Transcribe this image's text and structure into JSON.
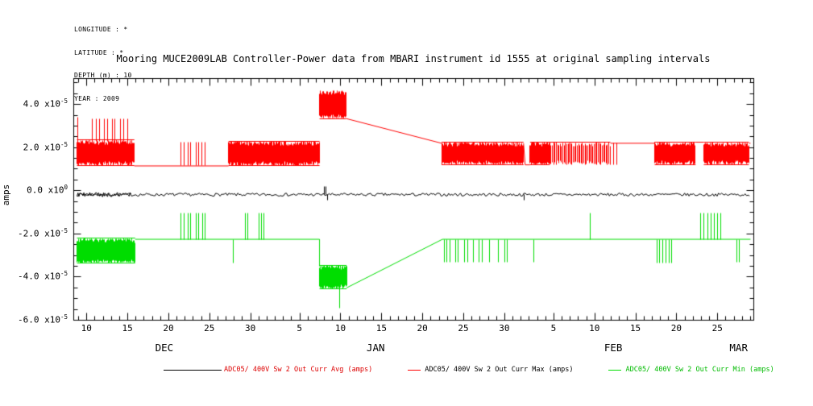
{
  "meta": {
    "longitude": "LONGITUDE : *",
    "latitude": "LATITUDE : *",
    "depth": "DEPTH (m) : 10",
    "year": "YEAR : 2009"
  },
  "chart_data": {
    "type": "line",
    "title": "Mooring MUCE2009LAB Controller-Power data from MBARI instrument id 1555 at original sampling intervals",
    "ylabel": "amps",
    "x_axis": {
      "unit": "day of season, Dec 1 = 1",
      "min": 8.4,
      "max": 91.4,
      "minor_step": 1,
      "major_ticks": [
        {
          "day": 10,
          "label": "10"
        },
        {
          "day": 15,
          "label": "15"
        },
        {
          "day": 20,
          "label": "20"
        },
        {
          "day": 25,
          "label": "25"
        },
        {
          "day": 30,
          "label": "30"
        },
        {
          "day": 36,
          "label": "5"
        },
        {
          "day": 41,
          "label": "10"
        },
        {
          "day": 46,
          "label": "15"
        },
        {
          "day": 51,
          "label": "20"
        },
        {
          "day": 56,
          "label": "25"
        },
        {
          "day": 61,
          "label": "30"
        },
        {
          "day": 67,
          "label": "5"
        },
        {
          "day": 72,
          "label": "10"
        },
        {
          "day": 77,
          "label": "15"
        },
        {
          "day": 82,
          "label": "20"
        },
        {
          "day": 87,
          "label": "25"
        }
      ],
      "months": [
        {
          "label": "DEC",
          "day": 19.5
        },
        {
          "label": "JAN",
          "day": 45.3
        },
        {
          "label": "FEB",
          "day": 74.3
        },
        {
          "label": "MAR",
          "day": 89.6
        }
      ]
    },
    "y_axis": {
      "min": -6e-05,
      "max": 5.2e-05,
      "minor_step": 5e-06,
      "ticks": [
        {
          "v": 4e-05,
          "mant": "4.0",
          "exp": "-5"
        },
        {
          "v": 2e-05,
          "mant": "2.0",
          "exp": "-5"
        },
        {
          "v": 0,
          "mant": "0.0",
          "exp": "0"
        },
        {
          "v": -2e-05,
          "mant": "-2.0",
          "exp": "-5"
        },
        {
          "v": -4e-05,
          "mant": "-4.0",
          "exp": "-5"
        },
        {
          "v": -6e-05,
          "mant": "-6.0",
          "exp": "-5"
        }
      ]
    },
    "series": [
      {
        "name": "Max",
        "color": "#ff0000",
        "elements": [
          {
            "t": "spikes",
            "base": 1.2e-05,
            "top": 3.4e-05,
            "xs": [
              8.9
            ]
          },
          {
            "t": "noise",
            "x0": 8.8,
            "x1": 15.8,
            "lo": 1.15e-05,
            "hi": 2.35e-05,
            "step": 0.07,
            "seed": 11,
            "edge": "both"
          },
          {
            "t": "spikes",
            "base": 2.3e-05,
            "top": 3.35e-05,
            "xs": [
              10.7,
              11.2,
              11.5,
              12.1,
              12.5,
              13.1,
              13.4,
              14.1,
              14.5,
              15.0
            ]
          },
          {
            "t": "line",
            "pts": [
              [
                15.8,
                1.15e-05
              ],
              [
                27.3,
                1.15e-05
              ]
            ]
          },
          {
            "t": "spikes",
            "base": 1.15e-05,
            "top": 2.25e-05,
            "xs": [
              21.5,
              21.9,
              22.4,
              22.7,
              23.3,
              23.6,
              24.0,
              24.4
            ]
          },
          {
            "t": "noise",
            "x0": 27.3,
            "x1": 38.4,
            "lo": 1.15e-05,
            "hi": 2.3e-05,
            "step": 0.07,
            "seed": 22,
            "edge": "both"
          },
          {
            "t": "noise",
            "x0": 38.4,
            "x1": 41.6,
            "lo": 3.35e-05,
            "hi": 4.65e-05,
            "step": 0.05,
            "seed": 33,
            "edge": "lo"
          },
          {
            "t": "line",
            "pts": [
              [
                41.6,
                3.35e-05
              ],
              [
                53.3,
                2.2e-05
              ]
            ]
          },
          {
            "t": "noise",
            "x0": 53.3,
            "x1": 63.3,
            "lo": 1.2e-05,
            "hi": 2.25e-05,
            "step": 0.06,
            "seed": 44,
            "edge": "both"
          },
          {
            "t": "line",
            "pts": [
              [
                63.3,
                2.2e-05
              ],
              [
                63.5,
                1.2e-05
              ],
              [
                64.1,
                1.2e-05
              ]
            ]
          },
          {
            "t": "noise",
            "x0": 64.1,
            "x1": 66.5,
            "lo": 1.2e-05,
            "hi": 2.25e-05,
            "step": 0.06,
            "seed": 55,
            "edge": "both"
          },
          {
            "t": "noise",
            "x0": 66.5,
            "x1": 73.9,
            "lo": 1.2e-05,
            "hi": 2.25e-05,
            "step": 0.16,
            "seed": 66,
            "edge": "hi"
          },
          {
            "t": "line",
            "pts": [
              [
                73.9,
                2.2e-05
              ],
              [
                79.3,
                2.2e-05
              ]
            ]
          },
          {
            "t": "spikes",
            "base": 2.2e-05,
            "top": 1.2e-05,
            "xs": [
              74.3,
              74.7
            ]
          },
          {
            "t": "noise",
            "x0": 79.3,
            "x1": 84.3,
            "lo": 1.2e-05,
            "hi": 2.25e-05,
            "step": 0.09,
            "seed": 77,
            "edge": "both"
          },
          {
            "t": "line",
            "pts": [
              [
                84.3,
                2.25e-05
              ],
              [
                85.3,
                2.25e-05
              ]
            ]
          },
          {
            "t": "noise",
            "x0": 85.3,
            "x1": 90.8,
            "lo": 1.2e-05,
            "hi": 2.25e-05,
            "step": 0.09,
            "seed": 88,
            "edge": "both"
          },
          {
            "t": "line",
            "pts": [
              [
                90.8,
                2.2e-05
              ],
              [
                91.0,
                2.2e-05
              ]
            ]
          }
        ]
      },
      {
        "name": "Min",
        "color": "#00dd00",
        "elements": [
          {
            "t": "noise",
            "x0": 8.8,
            "x1": 15.9,
            "lo": -3.35e-05,
            "hi": -2.2e-05,
            "step": 0.05,
            "seed": 101,
            "edge": "both"
          },
          {
            "t": "line",
            "pts": [
              [
                15.9,
                -2.25e-05
              ],
              [
                38.4,
                -2.25e-05
              ]
            ]
          },
          {
            "t": "spikes",
            "base": -2.25e-05,
            "top": -1.05e-05,
            "xs": [
              21.5,
              21.9,
              22.4,
              22.7,
              23.3,
              23.6,
              24.1,
              24.4
            ]
          },
          {
            "t": "spikes",
            "base": -2.25e-05,
            "top": -3.35e-05,
            "xs": [
              27.9
            ]
          },
          {
            "t": "spikes",
            "base": -2.25e-05,
            "top": -1.05e-05,
            "xs": [
              29.3,
              29.6,
              31.0,
              31.3,
              31.6
            ]
          },
          {
            "t": "line",
            "pts": [
              [
                38.4,
                -2.25e-05
              ],
              [
                38.4,
                -3.5e-05
              ]
            ]
          },
          {
            "t": "noise",
            "x0": 38.4,
            "x1": 41.7,
            "lo": -4.55e-05,
            "hi": -3.45e-05,
            "step": 0.05,
            "seed": 112,
            "edge": "both"
          },
          {
            "t": "spikes",
            "base": -4.5e-05,
            "top": -5.45e-05,
            "xs": [
              40.9
            ]
          },
          {
            "t": "line",
            "pts": [
              [
                41.7,
                -4.5e-05
              ],
              [
                53.4,
                -2.25e-05
              ]
            ]
          },
          {
            "t": "line",
            "pts": [
              [
                53.4,
                -2.25e-05
              ],
              [
                91.0,
                -2.25e-05
              ]
            ]
          },
          {
            "t": "spikes",
            "base": -2.25e-05,
            "top": -3.3e-05,
            "xs": [
              53.6,
              53.9,
              54.3,
              55.0,
              55.3,
              56.1,
              56.5,
              57.2,
              57.9,
              58.3,
              59.1,
              60.2,
              61.0,
              61.3,
              64.6
            ]
          },
          {
            "t": "spikes",
            "base": -2.25e-05,
            "top": -1.05e-05,
            "xs": [
              71.4
            ]
          },
          {
            "t": "spikes",
            "base": -2.25e-05,
            "top": -3.35e-05,
            "xs": [
              79.6,
              79.9,
              80.3,
              80.7,
              81.1,
              81.4
            ]
          },
          {
            "t": "spikes",
            "base": -2.25e-05,
            "top": -1.05e-05,
            "xs": [
              84.9,
              85.3,
              85.8,
              86.2,
              86.6,
              87.0,
              87.4
            ]
          },
          {
            "t": "spikes",
            "base": -2.25e-05,
            "top": -3.3e-05,
            "xs": [
              89.3,
              89.6
            ]
          }
        ]
      },
      {
        "name": "Avg",
        "color": "#000000",
        "elements": [
          {
            "t": "jitter",
            "x0": 8.8,
            "x1": 91.0,
            "base": -1.8e-06,
            "amp": 1.4e-06,
            "step": 0.18,
            "seed": 7
          },
          {
            "t": "jitter",
            "x0": 8.8,
            "x1": 15.5,
            "base": -1.8e-06,
            "amp": 2.2e-06,
            "step": 0.12,
            "seed": 9
          },
          {
            "t": "spikes",
            "base": -1.8e-06,
            "top": 1.8e-06,
            "xs": [
              38.95,
              39.2
            ]
          },
          {
            "t": "spikes",
            "base": -1.8e-06,
            "top": -4.2e-06,
            "xs": [
              39.35,
              63.4
            ]
          }
        ]
      }
    ],
    "legend": [
      {
        "label": "ADC05/ 400V Sw 2 Out Curr Avg (amps)",
        "line_color": "#000000",
        "text_color": "#dd0000"
      },
      {
        "label": "ADC05/ 400V Sw 2 Out Curr Max (amps)",
        "line_color": "#ff0000",
        "text_color": "#000000"
      },
      {
        "label": "ADC05/ 400V Sw 2 Out Curr Min (amps)",
        "line_color": "#00dd00",
        "text_color": "#00bb00"
      }
    ]
  }
}
